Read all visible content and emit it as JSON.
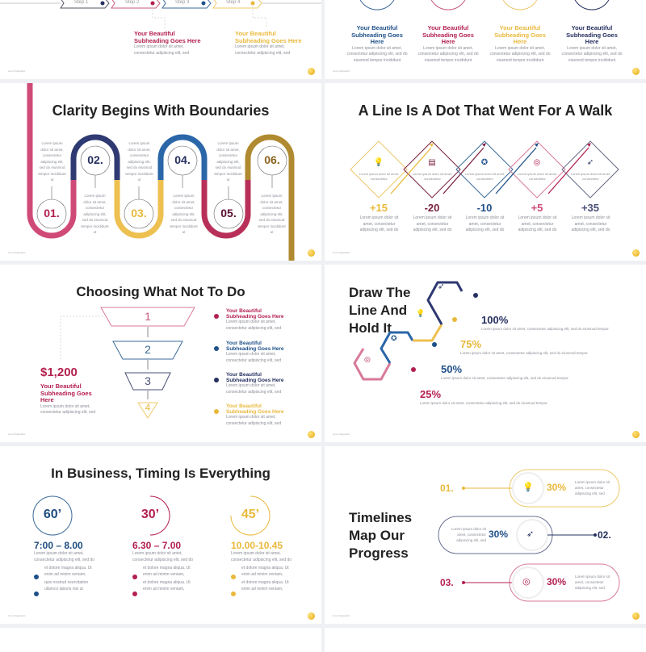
{
  "footer": "Line Infographic",
  "colors": {
    "navy": "#25305f",
    "blue": "#1e5088",
    "crimson": "#b3204f",
    "pink": "#de7d98",
    "gold": "#e9b93c",
    "brown": "#8a6420"
  },
  "s1": {
    "steps": [
      "Step 1",
      "Step 2",
      "Step 3",
      "Step 4"
    ],
    "items": [
      {
        "head": "Your Beautiful Subheading Goes Here",
        "text": "Lorem ipsum dolor sit amet, consectetur adipiscing elit, sed"
      },
      {
        "head": "Your Beautiful Subheading Goes Here",
        "text": "Lorem ipsum dolor sit amet, consectetur adipiscing elit, sed"
      }
    ]
  },
  "s2": {
    "items": [
      {
        "head": "Your Beautiful Subheading Goes Here",
        "text": "Lorem ipsum dolor sit amet, consectetur adipiscing elit, sed do eiusmod tempor incididunt"
      },
      {
        "head": "Your Beautiful Subheading Goes Here",
        "text": "Lorem ipsum dolor sit amet, consectetur adipiscing elit, sed do eiusmod tempor incididunt"
      },
      {
        "head": "Your Beautiful Subheading Goes Here",
        "text": "Lorem ipsum dolor sit amet, consectetur adipiscing elit, sed do eiusmod tempor incididunt"
      },
      {
        "head": "Your Beautiful Subheading Goes Here",
        "text": "Lorem ipsum dolor sit amet, consectetur adipiscing elit, sed do eiusmod tempor incididunt"
      }
    ]
  },
  "s3": {
    "title": "Clarity Begins With Boundaries",
    "numbers": [
      "01.",
      "02.",
      "03.",
      "04.",
      "05.",
      "06."
    ],
    "text": "Lorem ipsum dolor sit amet, consectetur adipiscing elit, sed do eiusmod tempor incididunt ut"
  },
  "s4": {
    "title": "A Line Is A Dot That Went For A Walk",
    "icons": [
      "lightbulb-icon",
      "documents-icon",
      "award-hands-icon",
      "target-star-icon",
      "rocket-icon"
    ],
    "inner": "Lorem ipsum dolor sit amet, consectetur",
    "values": [
      "+15",
      "-20",
      "-10",
      "+5",
      "+35"
    ],
    "text": "Lorem ipsum dolor sit amet, consectetur adipiscing elit, sed do"
  },
  "s5": {
    "title": "Choosing What Not To Do",
    "levels": [
      "1",
      "2",
      "3",
      "4"
    ],
    "amount": "$1,200",
    "amount_head": "Your Beautiful Subheading Goes Here",
    "amount_text": "Lorem ipsum dolor sit amet, consectetur adipiscing elit, sed",
    "items": [
      {
        "head": "Your Beautiful Subheading Goes Here",
        "text": "Lorem ipsum dolor sit amet, consectetur adipiscing elit, sed"
      },
      {
        "head": "Your Beautiful Subheading Goes Here",
        "text": "Lorem ipsum dolor sit amet, consectetur adipiscing elit, sed"
      },
      {
        "head": "Your Beautiful Subheading Goes Here",
        "text": "Lorem ipsum dolor sit amet, consectetur adipiscing elit, sed"
      },
      {
        "head": "Your Beautiful Subheading Goes Here",
        "text": "Lorem ipsum dolor sit amet, consectetur adipiscing elit, sed"
      }
    ]
  },
  "s6": {
    "title_lines": [
      "Draw The",
      "Line And",
      "Hold It"
    ],
    "items": [
      {
        "pct": "100%",
        "text": "Lorem ipsum dolor sit amet, consectetur adipiscing elit, sed do eiusmod tempor"
      },
      {
        "pct": "75%",
        "text": "Lorem ipsum dolor sit amet, consectetur adipiscing elit, sed do eiusmod tempor"
      },
      {
        "pct": "50%",
        "text": "Lorem ipsum dolor sit amet, consectetur adipiscing elit, sed do eiusmod tempor"
      },
      {
        "pct": "25%",
        "text": "Lorem ipsum dolor sit amet, consectetur adipiscing elit, sed do eiusmod tempor"
      }
    ]
  },
  "s7": {
    "title": "In Business, Timing Is Everything",
    "cols": [
      {
        "mins": "60’",
        "time": "7:00 – 8.00",
        "text": "Lorem ipsum dolor sit amet, consectetur adipiscing elit, sed do",
        "b1": "et dolore magna aliqua. Ut enim ad minim veniam,",
        "b2": "quis nostrud exercitation ullamco laboris nisi ut"
      },
      {
        "mins": "30’",
        "time": "6.30 – 7.00",
        "text": "Lorem ipsum dolor sit amet, consectetur adipiscing elit, sed do",
        "b1": "et dolore magna aliqua. Ut enim ad minim veniam,",
        "b2": "et dolore magna aliqua. Ut enim ad minim veniam,"
      },
      {
        "mins": "45’",
        "time": "10.00-10.45",
        "text": "Lorem ipsum dolor sit amet, consectetur adipiscing elit, sed do",
        "b1": "et dolore magna aliqua. Ut enim ad minim veniam,",
        "b2": "et dolore magna aliqua. Ut enim ad minim veniam,"
      }
    ]
  },
  "s8": {
    "title_lines": [
      "Timelines",
      "Map Our",
      "Progress"
    ],
    "items": [
      {
        "num": "01.",
        "pct": "30%",
        "text": "Lorem ipsum dolor sit amet, consectetur adipiscing elit, sed"
      },
      {
        "num": "02.",
        "pct": "30%",
        "text": "Lorem ipsum dolor sit amet, consectetur adipiscing elit, sed"
      },
      {
        "num": "03.",
        "pct": "30%",
        "text": "Lorem ipsum dolor sit amet, consectetur adipiscing elit, sed"
      }
    ]
  }
}
